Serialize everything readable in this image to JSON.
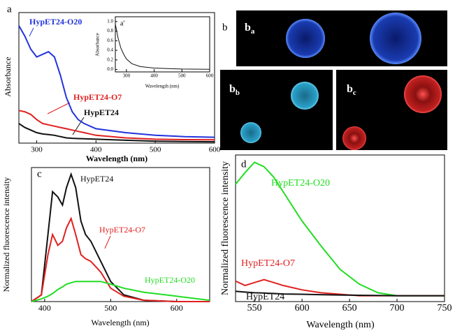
{
  "panel_b": {
    "label": "b",
    "sub_labels": [
      {
        "main": "b",
        "sub": "a"
      },
      {
        "main": "b",
        "sub": "b"
      },
      {
        "main": "b",
        "sub": "c"
      }
    ]
  },
  "chart_data": [
    {
      "type": "line",
      "panel_label": "a",
      "y_label": "Absorbance",
      "x_label": "Wavelength (nm)",
      "x": [
        270,
        280,
        290,
        300,
        310,
        320,
        330,
        340,
        350,
        360,
        370,
        380,
        400,
        450,
        500,
        550,
        600
      ],
      "xlim": [
        270,
        600
      ],
      "xticks": [
        300,
        400,
        500,
        600
      ],
      "ylim": [
        0,
        1
      ],
      "series": [
        {
          "name": "HypET24-O20",
          "color": "#2233dd",
          "values": [
            0.9,
            0.82,
            0.72,
            0.66,
            0.68,
            0.7,
            0.66,
            0.52,
            0.35,
            0.24,
            0.18,
            0.15,
            0.11,
            0.08,
            0.06,
            0.05,
            0.045
          ]
        },
        {
          "name": "HypET24-O7",
          "color": "#e02020",
          "values": [
            0.25,
            0.24,
            0.22,
            0.18,
            0.15,
            0.14,
            0.13,
            0.12,
            0.11,
            0.1,
            0.09,
            0.08,
            0.06,
            0.04,
            0.03,
            0.027,
            0.025
          ]
        },
        {
          "name": "HypET24",
          "color": "#111111",
          "values": [
            0.15,
            0.12,
            0.1,
            0.08,
            0.07,
            0.065,
            0.06,
            0.05,
            0.04,
            0.037,
            0.035,
            0.033,
            0.03,
            0.022,
            0.015,
            0.012,
            0.01
          ]
        }
      ]
    },
    {
      "type": "line",
      "panel_label": "a'",
      "y_label": "Absorbance",
      "x_label": "Wavelength (nm)",
      "x": [
        260,
        270,
        280,
        290,
        300,
        320,
        350,
        400,
        500,
        600
      ],
      "xlim": [
        260,
        600
      ],
      "xticks": [
        300,
        400,
        500,
        600
      ],
      "ylim": [
        -0.05,
        1.1
      ],
      "yticks": [
        {
          "value": 0,
          "label": "0.0"
        },
        {
          "value": 0.2,
          "label": "0.2"
        },
        {
          "value": 0.4,
          "label": "0.4"
        },
        {
          "value": 0.6,
          "label": "0.6"
        },
        {
          "value": 0.8,
          "label": "0.8"
        },
        {
          "value": 1,
          "label": "1.0"
        }
      ],
      "series": [
        {
          "color": "#111111",
          "values": [
            0.95,
            0.65,
            0.45,
            0.32,
            0.22,
            0.12,
            0.06,
            0.03,
            0.01,
            0.005
          ]
        }
      ]
    },
    {
      "type": "line",
      "panel_label": "c",
      "y_label": "Normalized fluorescence intensity",
      "x_label": "Wavelength (nm)",
      "x": [
        380,
        395,
        405,
        412,
        420,
        427,
        433,
        440,
        447,
        455,
        462,
        470,
        485,
        500,
        520,
        550,
        600,
        650
      ],
      "xlim": [
        380,
        650
      ],
      "xticks": [
        400,
        500,
        600
      ],
      "ylim": [
        0,
        1
      ],
      "series": [
        {
          "name": "HypET24",
          "color": "#111111",
          "values": [
            0,
            0.05,
            0.5,
            0.82,
            0.78,
            0.72,
            0.85,
            0.95,
            0.85,
            0.6,
            0.5,
            0.45,
            0.3,
            0.15,
            0.05,
            0.01,
            0,
            0
          ]
        },
        {
          "name": "HypET24-O7",
          "color": "#e02020",
          "values": [
            0,
            0.05,
            0.35,
            0.5,
            0.42,
            0.45,
            0.55,
            0.62,
            0.5,
            0.35,
            0.32,
            0.3,
            0.22,
            0.1,
            0.04,
            0.01,
            0,
            0
          ]
        },
        {
          "name": "HypET24-O20",
          "color": "#22dd22",
          "values": [
            0,
            0.02,
            0.04,
            0.06,
            0.09,
            0.11,
            0.13,
            0.14,
            0.15,
            0.15,
            0.15,
            0.15,
            0.15,
            0.13,
            0.1,
            0.07,
            0.04,
            0.01
          ]
        }
      ]
    },
    {
      "type": "line",
      "panel_label": "d",
      "y_label": "Normalized fluorescence intensity",
      "x_label": "Wavelength (nm)",
      "x": [
        530,
        540,
        550,
        560,
        570,
        580,
        600,
        620,
        640,
        660,
        680,
        700,
        750
      ],
      "xlim": [
        530,
        750
      ],
      "xticks": [
        550,
        600,
        650,
        700,
        750
      ],
      "ylim": [
        0,
        1
      ],
      "series": [
        {
          "name": "HypET24-O20",
          "color": "#22dd22",
          "values": [
            0.8,
            0.88,
            0.95,
            0.92,
            0.85,
            0.75,
            0.55,
            0.38,
            0.22,
            0.12,
            0.06,
            0.04,
            0.04
          ]
        },
        {
          "name": "HypET24-O7",
          "color": "#e02020",
          "values": [
            0.14,
            0.11,
            0.13,
            0.15,
            0.13,
            0.11,
            0.08,
            0.06,
            0.05,
            0.04,
            0.04,
            0.04,
            0.04
          ]
        },
        {
          "name": "HypET24",
          "color": "#111111",
          "values": [
            0.07,
            0.065,
            0.06,
            0.058,
            0.055,
            0.052,
            0.05,
            0.047,
            0.045,
            0.043,
            0.042,
            0.04,
            0.04
          ]
        }
      ]
    }
  ]
}
